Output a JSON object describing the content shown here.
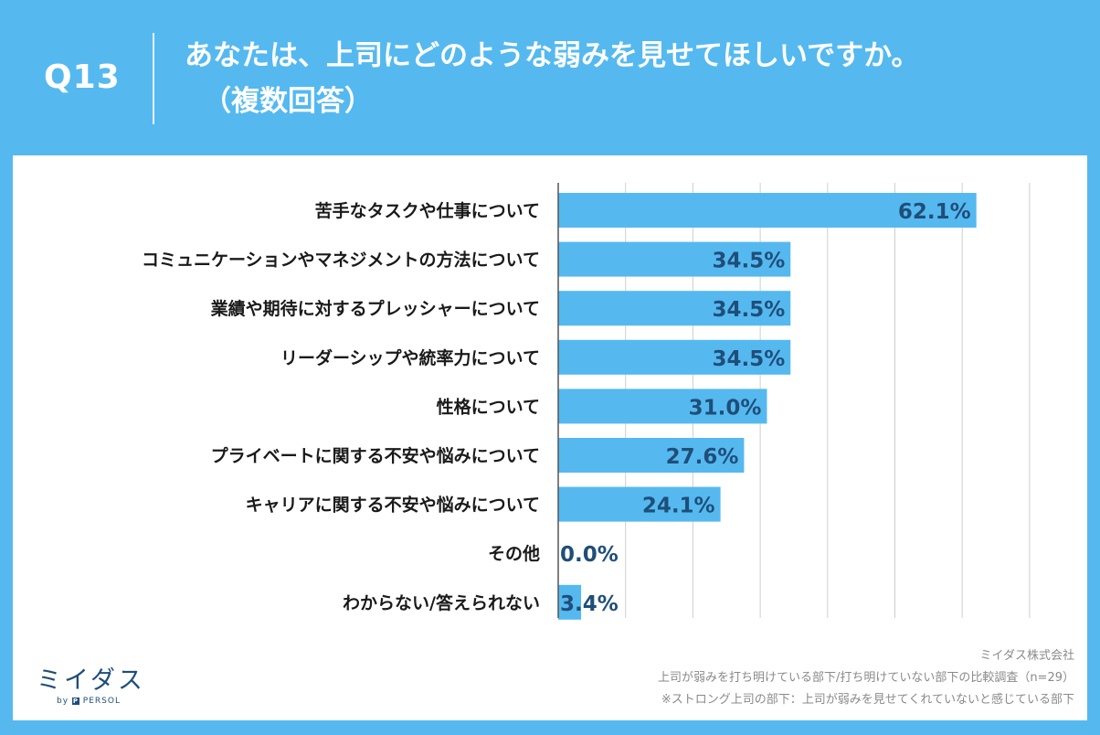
{
  "header": {
    "question_no": "Q13",
    "title_line1": "あなたは、上司にどのような弱みを見せてほしいですか。",
    "title_line2": "（複数回答）"
  },
  "chart_data": {
    "type": "bar",
    "orientation": "horizontal",
    "categories": [
      "苦手なタスクや仕事について",
      "コミュニケーションやマネジメントの方法について",
      "業績や期待に対するプレッシャーについて",
      "リーダーシップや統率力について",
      "性格について",
      "プライベートに関する不安や悩みについて",
      "キャリアに関する不安や悩みについて",
      "その他",
      "わからない/答えられない"
    ],
    "values": [
      62.1,
      34.5,
      34.5,
      34.5,
      31.0,
      27.6,
      24.1,
      0.0,
      3.4
    ],
    "data_labels": [
      "62.1%",
      "34.5%",
      "34.5%",
      "34.5%",
      "31.0%",
      "27.6%",
      "24.1%",
      "0.0%",
      "3.4%"
    ],
    "xlim": [
      0,
      70
    ],
    "grid": true,
    "bar_color": "#55b9f0",
    "label_color": "#1f4e79"
  },
  "source": {
    "company": "ミイダス株式会社",
    "survey": "上司が弱みを打ち明けている部下/打ち明けていない部下の比較調査（n=29）",
    "note": "※ストロング上司の部下：上司が弱みを見せてくれていないと感じている部下"
  },
  "logo": {
    "name": "ミイダス",
    "sub_by": "by",
    "sub_mark": "P",
    "sub_name": "PERSOL"
  }
}
